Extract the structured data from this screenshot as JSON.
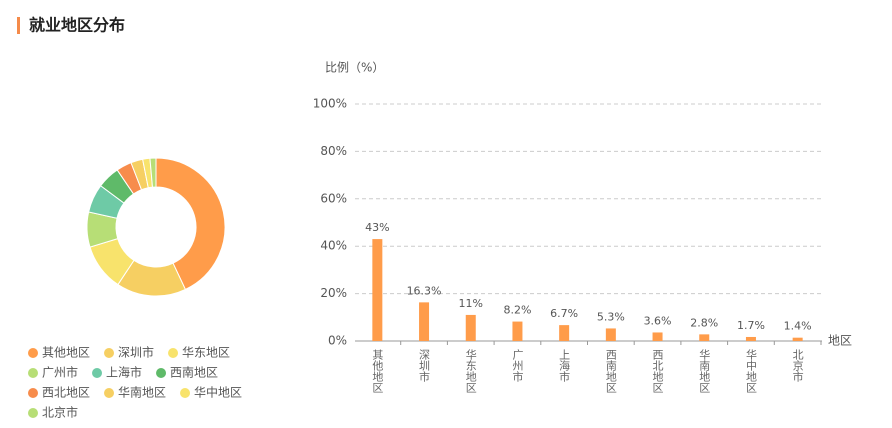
{
  "header": {
    "title": "就业地区分布"
  },
  "chart_data": [
    {
      "type": "pie",
      "categories": [
        "其他地区",
        "深圳市",
        "华东地区",
        "广州市",
        "上海市",
        "西南地区",
        "西北地区",
        "华南地区",
        "华中地区",
        "北京市"
      ],
      "values": [
        43,
        16.3,
        11,
        8.2,
        6.7,
        5.3,
        3.6,
        2.8,
        1.7,
        1.4
      ],
      "colors": [
        "#ff9c4a",
        "#f6cf62",
        "#f8e36c",
        "#b7de76",
        "#6ecaa6",
        "#5fba69",
        "#f78c4c",
        "#f6cf62",
        "#f8e36c",
        "#b7de76"
      ]
    },
    {
      "type": "bar",
      "y_label": "比例（%）",
      "x_label": "地区",
      "categories": [
        "其他地区",
        "深圳市",
        "华东地区",
        "广州市",
        "上海市",
        "西南地区",
        "西北地区",
        "华南地区",
        "华中地区",
        "北京市"
      ],
      "values": [
        43,
        16.3,
        11,
        8.2,
        6.7,
        5.3,
        3.6,
        2.8,
        1.7,
        1.4
      ],
      "value_labels": [
        "43%",
        "16.3%",
        "11%",
        "8.2%",
        "6.7%",
        "5.3%",
        "3.6%",
        "2.8%",
        "1.7%",
        "1.4%"
      ],
      "color": "#ff9c4a",
      "ylim": [
        0,
        100
      ],
      "yticks": [
        {
          "value": 0,
          "label": "0%"
        },
        {
          "value": 20,
          "label": "20%"
        },
        {
          "value": 40,
          "label": "40%"
        },
        {
          "value": 60,
          "label": "60%"
        },
        {
          "value": 80,
          "label": "80%"
        },
        {
          "value": 100,
          "label": "100%"
        }
      ],
      "grid": true
    }
  ]
}
